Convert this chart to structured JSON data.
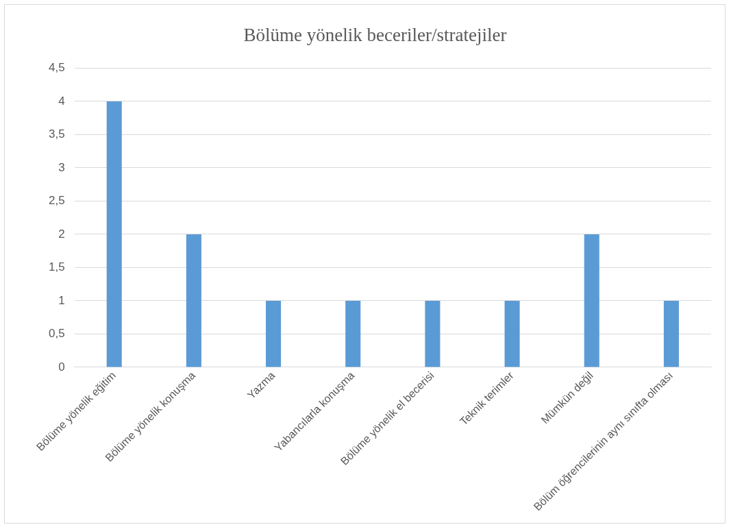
{
  "chart_data": {
    "type": "bar",
    "title": "Bölüme yönelik beceriler/stratejiler",
    "categories": [
      "Bölüme yönelik eğitim",
      "Bölüme yönelik konuşma",
      "Yazma",
      "Yabancılarla konuşma",
      "Bölüme yönelik el becerisi",
      "Teknik terimler",
      "Mümkün değil",
      "Bölüm öğrencilerinin aynı sınıfta olması"
    ],
    "values": [
      4,
      2,
      1,
      1,
      1,
      1,
      2,
      1
    ],
    "color": "#5b9bd5",
    "ylim": [
      0,
      4.5
    ],
    "yticks": [
      0,
      {
        "value": 0.5,
        "label": "0,5"
      },
      1,
      {
        "value": 1.5,
        "label": "1,5"
      },
      2,
      {
        "value": 2.5,
        "label": "2,5"
      },
      3,
      {
        "value": 3.5,
        "label": "3,5"
      },
      4,
      {
        "value": 4.5,
        "label": "4,5"
      }
    ],
    "grid": true
  }
}
